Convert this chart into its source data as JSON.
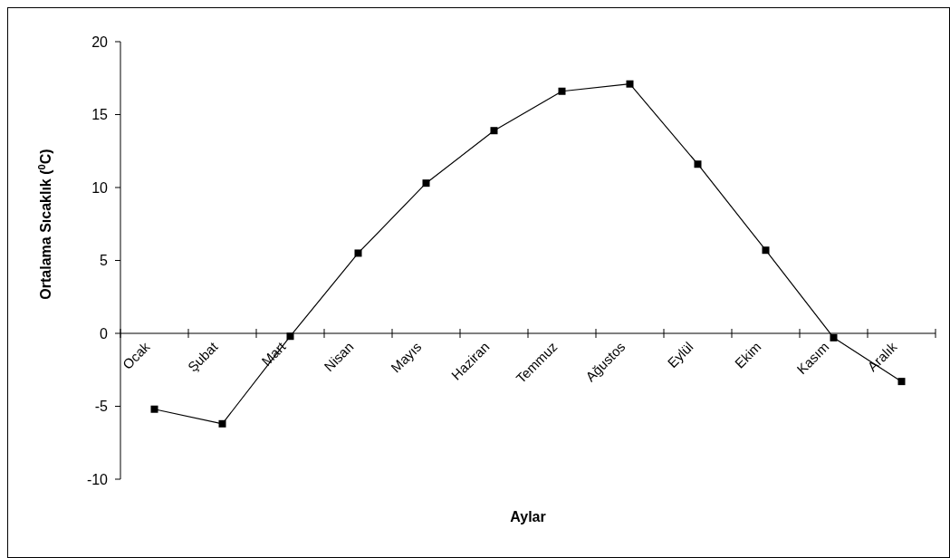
{
  "chart_data": {
    "type": "line",
    "xlabel": "Aylar",
    "ylabel": "Ortalama Sıcaklık ($^{0}$C)",
    "categories": [
      "Ocak",
      "Şubat",
      "Mart",
      "Nisan",
      "Mayıs",
      "Haziran",
      "Temmuz",
      "Ağustos",
      "Eylül",
      "Ekim",
      "Kasım",
      "Aralık"
    ],
    "series": [
      {
        "color": "#000000",
        "values": [
          -5.2,
          -6.2,
          -0.2,
          5.5,
          10.3,
          13.9,
          16.6,
          17.1,
          11.6,
          5.7,
          -0.3,
          -3.3
        ]
      }
    ],
    "ylim": [
      -10,
      20
    ],
    "yticks": [
      -10,
      -5,
      0,
      5,
      10,
      15,
      20
    ],
    "marker": "square",
    "line_style": "solid"
  }
}
